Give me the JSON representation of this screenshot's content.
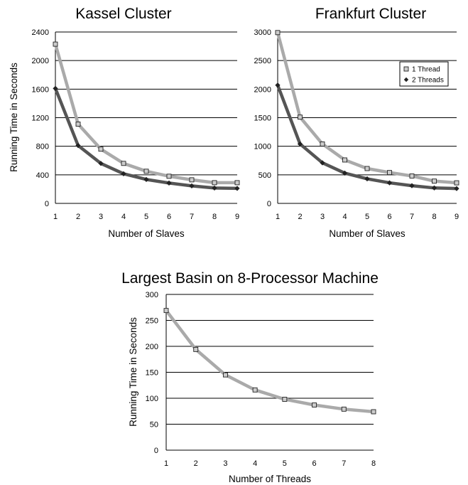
{
  "chart_data": [
    {
      "type": "line",
      "title": "Kassel Cluster",
      "xlabel": "Number of Slaves",
      "ylabel": "Running Time in Seconds",
      "x": [
        1,
        2,
        3,
        4,
        5,
        6,
        7,
        8,
        9
      ],
      "xlim": [
        1,
        9
      ],
      "ylim": [
        0,
        2400
      ],
      "yticks": [
        0,
        400,
        800,
        1200,
        1600,
        2000,
        2400
      ],
      "grid": true,
      "legend": "none",
      "series": [
        {
          "name": "1 Thread",
          "values": [
            2230,
            1110,
            760,
            560,
            450,
            380,
            330,
            290,
            290
          ],
          "color": "#aaaaaa",
          "marker": "square"
        },
        {
          "name": "2 Threads",
          "values": [
            1610,
            810,
            560,
            415,
            335,
            285,
            245,
            215,
            210
          ],
          "color": "#555555",
          "marker": "diamond"
        }
      ]
    },
    {
      "type": "line",
      "title": "Frankfurt Cluster",
      "xlabel": "Number of Slaves",
      "ylabel": "",
      "x": [
        1,
        2,
        3,
        4,
        5,
        6,
        7,
        8,
        9
      ],
      "xlim": [
        1,
        9
      ],
      "ylim": [
        0,
        3000
      ],
      "yticks": [
        0,
        500,
        1000,
        1500,
        2000,
        2500,
        3000
      ],
      "grid": true,
      "legend": "top-right",
      "series": [
        {
          "name": "1 Thread",
          "values": [
            2990,
            1510,
            1040,
            760,
            610,
            540,
            480,
            390,
            360
          ],
          "color": "#aaaaaa",
          "marker": "square"
        },
        {
          "name": "2 Threads",
          "values": [
            2070,
            1040,
            710,
            530,
            430,
            360,
            310,
            270,
            260
          ],
          "color": "#555555",
          "marker": "diamond"
        }
      ]
    },
    {
      "type": "line",
      "title": "Largest Basin on 8-Processor Machine",
      "xlabel": "Number of Threads",
      "ylabel": "Running Time in Seconds",
      "x": [
        1,
        2,
        3,
        4,
        5,
        6,
        7,
        8
      ],
      "xlim": [
        1,
        8
      ],
      "ylim": [
        0,
        300
      ],
      "yticks": [
        0,
        50,
        100,
        150,
        200,
        250,
        300
      ],
      "grid": true,
      "legend": "none",
      "series": [
        {
          "values": [
            269,
            194,
            145,
            116,
            98,
            87,
            79,
            74
          ],
          "color": "#aaaaaa",
          "marker": "square"
        }
      ]
    }
  ]
}
